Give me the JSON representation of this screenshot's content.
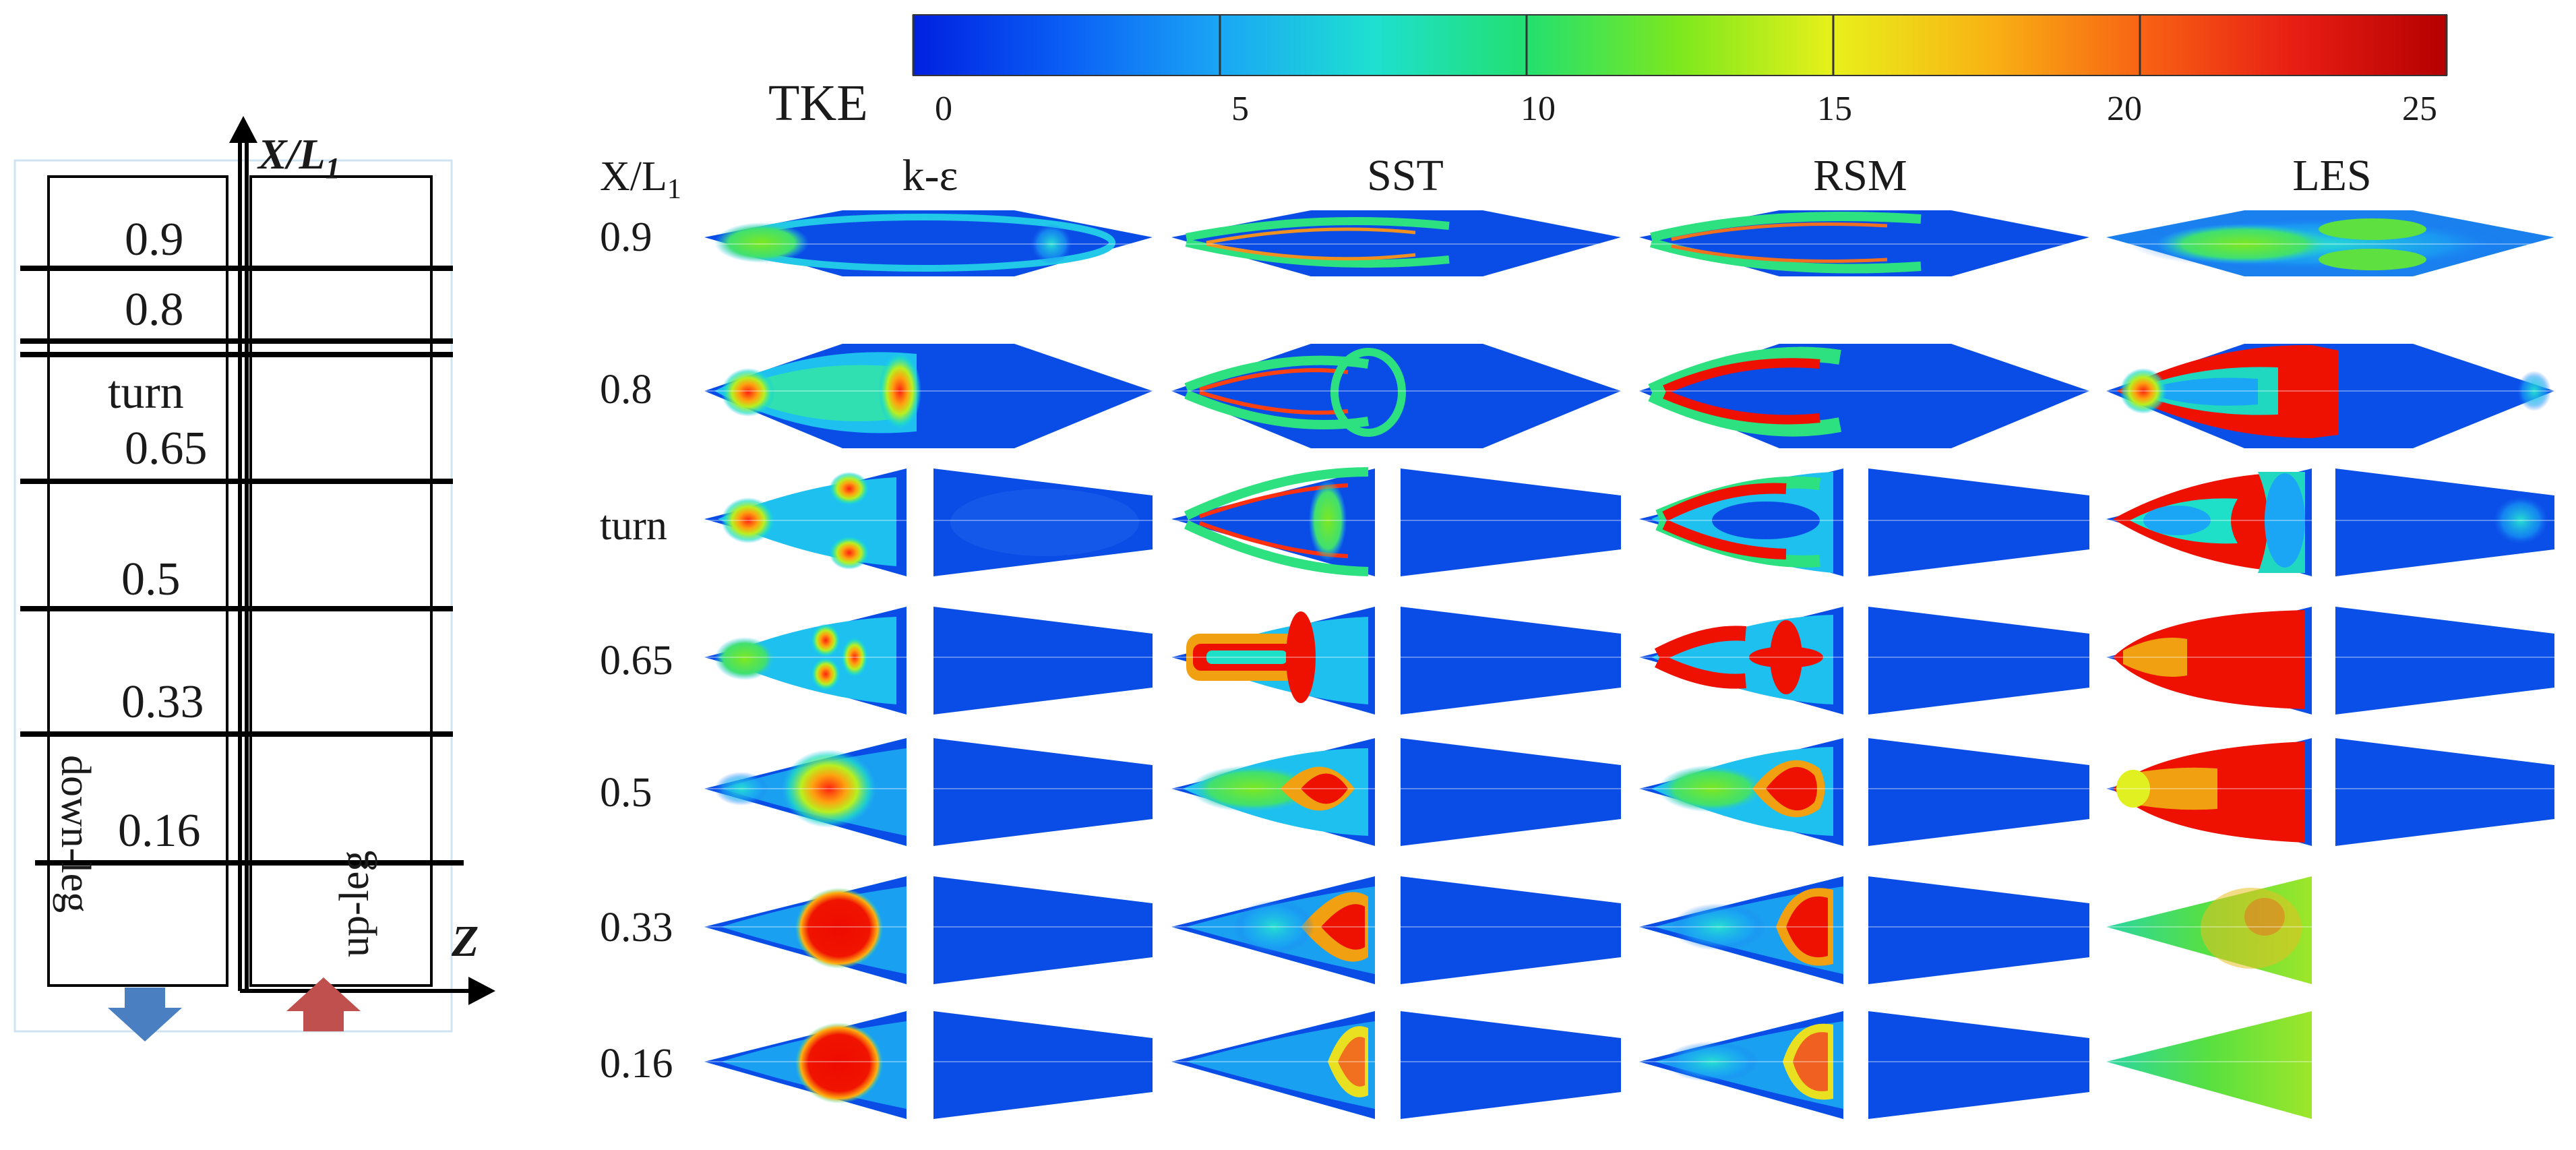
{
  "colorbar": {
    "label": "TKE",
    "ticks": [
      "0",
      "5",
      "10",
      "15",
      "20",
      "25"
    ],
    "min": 0,
    "max": 25,
    "colors": [
      "#0020e0",
      "#0a5ff5",
      "#1aa6f5",
      "#1ee0d0",
      "#22e070",
      "#7de81e",
      "#e8f01a",
      "#f8b414",
      "#f86414",
      "#e81e14",
      "#b40000"
    ]
  },
  "schematic": {
    "axis_x_label": "X/L",
    "axis_x_subscript": "1",
    "axis_z_label": "Z",
    "sections": [
      "0.9",
      "0.8",
      "turn",
      "0.65",
      "0.5",
      "0.33",
      "0.16"
    ],
    "downleg_label": "down-leg",
    "upleg_label": "up-leg",
    "down_arrow_color": "#4a7fc1",
    "up_arrow_color": "#c0504d"
  },
  "grid": {
    "row_header": "X/L",
    "row_header_subscript": "1",
    "models": [
      "k-ε",
      "SST",
      "RSM",
      "LES"
    ],
    "rows": [
      "0.9",
      "0.8",
      "turn",
      "0.65",
      "0.5",
      "0.33",
      "0.16"
    ]
  }
}
